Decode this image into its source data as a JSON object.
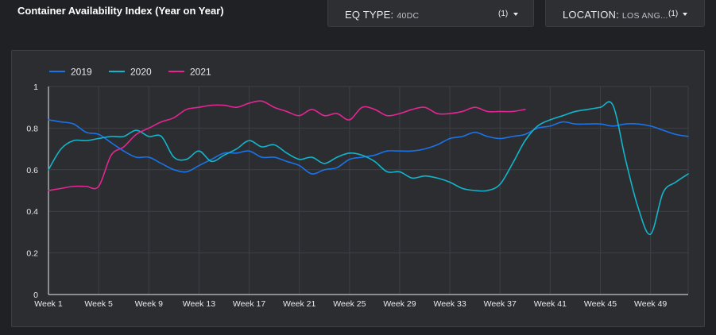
{
  "header": {
    "title": "Container Availability Index (Year on Year)"
  },
  "filters": {
    "eq_type": {
      "key": "EQ TYPE:",
      "value": "40DC",
      "count": "(1)"
    },
    "location": {
      "key": "LOCATION:",
      "value": "LOS ANG...",
      "count": "(1)"
    }
  },
  "colors": {
    "background": "#202124",
    "panel": "#2b2d31",
    "grid": "#3d4046",
    "2019": "#1a73e8",
    "2020": "#12b5cb",
    "2021": "#e52592"
  },
  "chart_data": {
    "type": "line",
    "title": "Container Availability Index (Year on Year)",
    "xlabel": "",
    "ylabel": "",
    "ylim": [
      0,
      1
    ],
    "yticks": [
      "0",
      "0.2",
      "0.4",
      "0.6",
      "0.8",
      "1"
    ],
    "xlim": [
      1,
      52
    ],
    "xticks": [
      {
        "week": 1,
        "label": "Week 1"
      },
      {
        "week": 5,
        "label": "Week 5"
      },
      {
        "week": 9,
        "label": "Week 9"
      },
      {
        "week": 13,
        "label": "Week 13"
      },
      {
        "week": 17,
        "label": "Week 17"
      },
      {
        "week": 21,
        "label": "Week 21"
      },
      {
        "week": 25,
        "label": "Week 25"
      },
      {
        "week": 29,
        "label": "Week 29"
      },
      {
        "week": 33,
        "label": "Week 33"
      },
      {
        "week": 37,
        "label": "Week 37"
      },
      {
        "week": 41,
        "label": "Week 41"
      },
      {
        "week": 45,
        "label": "Week 45"
      },
      {
        "week": 49,
        "label": "Week 49"
      }
    ],
    "grid": true,
    "legend_position": "top-left",
    "series": [
      {
        "name": "2019",
        "color": "#1a73e8",
        "x": [
          1,
          2,
          3,
          4,
          5,
          6,
          7,
          8,
          9,
          10,
          11,
          12,
          13,
          14,
          15,
          16,
          17,
          18,
          19,
          20,
          21,
          22,
          23,
          24,
          25,
          26,
          27,
          28,
          29,
          30,
          31,
          32,
          33,
          34,
          35,
          36,
          37,
          38,
          39,
          40,
          41,
          42,
          43,
          44,
          45,
          46,
          47,
          48,
          49,
          50,
          51,
          52
        ],
        "values": [
          0.84,
          0.83,
          0.82,
          0.78,
          0.77,
          0.73,
          0.69,
          0.66,
          0.66,
          0.63,
          0.6,
          0.59,
          0.62,
          0.65,
          0.68,
          0.68,
          0.69,
          0.66,
          0.66,
          0.64,
          0.62,
          0.58,
          0.6,
          0.61,
          0.65,
          0.66,
          0.67,
          0.69,
          0.69,
          0.69,
          0.7,
          0.72,
          0.75,
          0.76,
          0.78,
          0.76,
          0.75,
          0.76,
          0.77,
          0.8,
          0.81,
          0.83,
          0.82,
          0.82,
          0.82,
          0.81,
          0.82,
          0.82,
          0.81,
          0.79,
          0.77,
          0.76
        ]
      },
      {
        "name": "2020",
        "color": "#12b5cb",
        "x": [
          1,
          2,
          3,
          4,
          5,
          6,
          7,
          8,
          9,
          10,
          11,
          12,
          13,
          14,
          15,
          16,
          17,
          18,
          19,
          20,
          21,
          22,
          23,
          24,
          25,
          26,
          27,
          28,
          29,
          30,
          31,
          32,
          33,
          34,
          35,
          36,
          37,
          38,
          39,
          40,
          41,
          42,
          43,
          44,
          45,
          46,
          47,
          48,
          49,
          50,
          51,
          52
        ],
        "values": [
          0.6,
          0.7,
          0.74,
          0.74,
          0.75,
          0.76,
          0.76,
          0.79,
          0.76,
          0.76,
          0.66,
          0.65,
          0.69,
          0.64,
          0.67,
          0.7,
          0.74,
          0.71,
          0.72,
          0.68,
          0.65,
          0.66,
          0.63,
          0.66,
          0.68,
          0.67,
          0.64,
          0.59,
          0.59,
          0.56,
          0.57,
          0.56,
          0.54,
          0.51,
          0.5,
          0.5,
          0.53,
          0.63,
          0.74,
          0.81,
          0.84,
          0.86,
          0.88,
          0.89,
          0.9,
          0.91,
          0.65,
          0.42,
          0.29,
          0.49,
          0.54,
          0.58
        ]
      },
      {
        "name": "2021",
        "color": "#e52592",
        "x": [
          1,
          2,
          3,
          4,
          5,
          6,
          7,
          8,
          9,
          10,
          11,
          12,
          13,
          14,
          15,
          16,
          17,
          18,
          19,
          20,
          21,
          22,
          23,
          24,
          25,
          26,
          27,
          28,
          29,
          30,
          31,
          32,
          33,
          34,
          35,
          36,
          37,
          38,
          39
        ],
        "values": [
          0.5,
          0.51,
          0.52,
          0.52,
          0.52,
          0.67,
          0.71,
          0.77,
          0.8,
          0.83,
          0.85,
          0.89,
          0.9,
          0.91,
          0.91,
          0.9,
          0.92,
          0.93,
          0.9,
          0.88,
          0.86,
          0.89,
          0.86,
          0.87,
          0.84,
          0.9,
          0.89,
          0.86,
          0.87,
          0.89,
          0.9,
          0.87,
          0.87,
          0.88,
          0.9,
          0.88,
          0.88,
          0.88,
          0.89
        ]
      }
    ]
  }
}
